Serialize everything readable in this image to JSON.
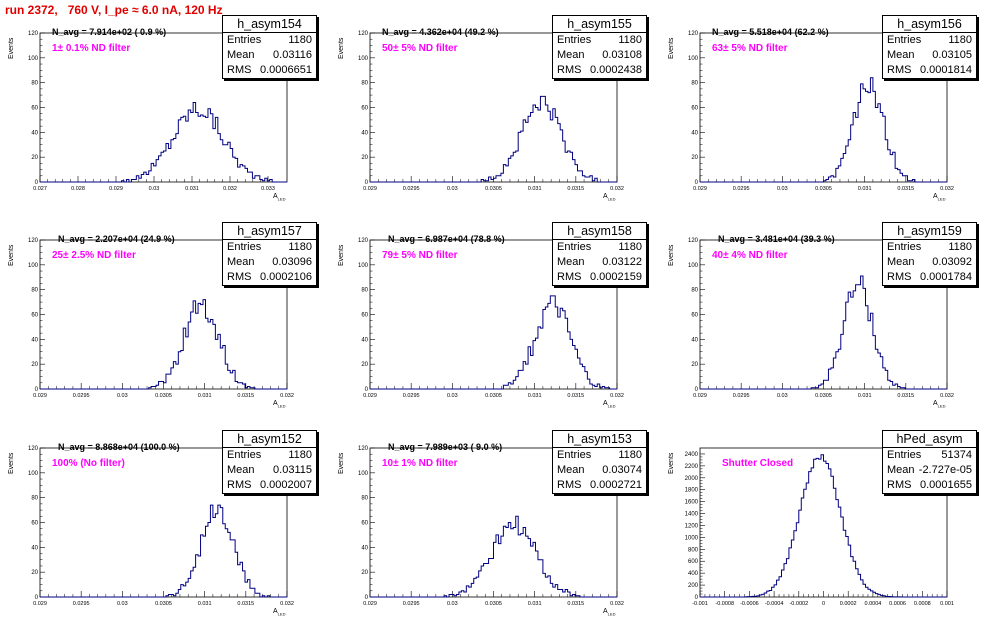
{
  "run_title": "run 2372,   760 V, I_pe ≈ 6.0 nA, 120 Hz",
  "colors": {
    "hist_line": "#000080",
    "filter_text": "#ff00ff",
    "title_text": "#e00000"
  },
  "chart_data": [
    {
      "type": "bar",
      "name": "h_asym154",
      "navg": "N_avg = 7.914e+02 ( 0.9 %)",
      "filter": "1± 0.1% ND filter",
      "stats": {
        "entries": "1180",
        "mean": "0.03116",
        "rms": "0.0006651"
      },
      "xlabel": "A",
      "xlabel_sub": "LED",
      "ylabel": "Events",
      "xlim": [
        0.027,
        0.0335
      ],
      "ylim": [
        0,
        120
      ],
      "xticks": [
        "0.027",
        "0.028",
        "0.029",
        "0.03",
        "0.031",
        "0.032",
        "0.033"
      ],
      "yticks": [
        "0",
        "20",
        "40",
        "60",
        "80",
        "100",
        "120"
      ],
      "mean": 0.03116,
      "rms": 0.0006651,
      "peak": 60
    },
    {
      "type": "bar",
      "name": "h_asym155",
      "navg": "N_avg = 4.362e+04 (49.2 %)",
      "filter": "50± 5% ND filter",
      "stats": {
        "entries": "1180",
        "mean": "0.03108",
        "rms": "0.0002438"
      },
      "xlabel": "A",
      "xlabel_sub": "LED",
      "ylabel": "Events",
      "xlim": [
        0.029,
        0.032
      ],
      "ylim": [
        0,
        120
      ],
      "xticks": [
        "0.029",
        "0.0295",
        "0.03",
        "0.0305",
        "0.031",
        "0.0315",
        "0.032"
      ],
      "yticks": [
        "0",
        "20",
        "40",
        "60",
        "80",
        "100",
        "120"
      ],
      "mean": 0.03108,
      "rms": 0.0002438,
      "peak": 63
    },
    {
      "type": "bar",
      "name": "h_asym156",
      "navg": "N_avg = 5.518e+04 (62.2 %)",
      "filter": "63± 5% ND filter",
      "stats": {
        "entries": "1180",
        "mean": "0.03105",
        "rms": "0.0001814"
      },
      "xlabel": "A",
      "xlabel_sub": "LED",
      "ylabel": "Events",
      "xlim": [
        0.029,
        0.032
      ],
      "ylim": [
        0,
        120
      ],
      "xticks": [
        "0.029",
        "0.0295",
        "0.03",
        "0.0305",
        "0.031",
        "0.0315",
        "0.032"
      ],
      "yticks": [
        "0",
        "20",
        "40",
        "60",
        "80",
        "100",
        "120"
      ],
      "mean": 0.03105,
      "rms": 0.0001814,
      "peak": 78
    },
    {
      "type": "bar",
      "name": "h_asym157",
      "navg": "N_avg = 2.207e+04 (24.9 %)",
      "filter": "25± 2.5% ND filter",
      "stats": {
        "entries": "1180",
        "mean": "0.03096",
        "rms": "0.0002106"
      },
      "xlabel": "A",
      "xlabel_sub": "LED",
      "ylabel": "Events",
      "xlim": [
        0.029,
        0.032
      ],
      "ylim": [
        0,
        120
      ],
      "xticks": [
        "0.029",
        "0.0295",
        "0.03",
        "0.0305",
        "0.031",
        "0.0315",
        "0.032"
      ],
      "yticks": [
        "0",
        "20",
        "40",
        "60",
        "80",
        "100",
        "120"
      ],
      "mean": 0.03096,
      "rms": 0.0002106,
      "peak": 68
    },
    {
      "type": "bar",
      "name": "h_asym158",
      "navg": "N_avg = 6.987e+04 (78.8 %)",
      "filter": "79± 5% ND filter",
      "stats": {
        "entries": "1180",
        "mean": "0.03122",
        "rms": "0.0002159"
      },
      "xlabel": "A",
      "xlabel_sub": "LED",
      "ylabel": "Events",
      "xlim": [
        0.029,
        0.032
      ],
      "ylim": [
        0,
        120
      ],
      "xticks": [
        "0.029",
        "0.0295",
        "0.03",
        "0.0305",
        "0.031",
        "0.0315",
        "0.032"
      ],
      "yticks": [
        "0",
        "20",
        "40",
        "60",
        "80",
        "100",
        "120"
      ],
      "mean": 0.03122,
      "rms": 0.0002159,
      "peak": 68
    },
    {
      "type": "bar",
      "name": "h_asym159",
      "navg": "N_avg = 3.481e+04 (39.3 %)",
      "filter": "40± 4% ND filter",
      "stats": {
        "entries": "1180",
        "mean": "0.03092",
        "rms": "0.0001784"
      },
      "xlabel": "A",
      "xlabel_sub": "LED",
      "ylabel": "Events",
      "xlim": [
        0.029,
        0.032
      ],
      "ylim": [
        0,
        120
      ],
      "xticks": [
        "0.029",
        "0.0295",
        "0.03",
        "0.0305",
        "0.031",
        "0.0315",
        "0.032"
      ],
      "yticks": [
        "0",
        "20",
        "40",
        "60",
        "80",
        "100",
        "120"
      ],
      "mean": 0.03092,
      "rms": 0.0001784,
      "peak": 84
    },
    {
      "type": "bar",
      "name": "h_asym152",
      "navg": "N_avg = 8.868e+04 (100.0 %)",
      "filter": "100% (No filter)",
      "stats": {
        "entries": "1180",
        "mean": "0.03115",
        "rms": "0.0002007"
      },
      "xlabel": "A",
      "xlabel_sub": "LED",
      "ylabel": "Events",
      "xlim": [
        0.029,
        0.032
      ],
      "ylim": [
        0,
        120
      ],
      "xticks": [
        "0.029",
        "0.0295",
        "0.03",
        "0.0305",
        "0.031",
        "0.0315",
        "0.032"
      ],
      "yticks": [
        "0",
        "20",
        "40",
        "60",
        "80",
        "100",
        "120"
      ],
      "mean": 0.03115,
      "rms": 0.0002007,
      "peak": 70
    },
    {
      "type": "bar",
      "name": "h_asym153",
      "navg": "N_avg = 7.989e+03 ( 9.0 %)",
      "filter": "10± 1% ND filter",
      "stats": {
        "entries": "1180",
        "mean": "0.03074",
        "rms": "0.0002721"
      },
      "xlabel": "A",
      "xlabel_sub": "LED",
      "ylabel": "Events",
      "xlim": [
        0.029,
        0.032
      ],
      "ylim": [
        0,
        120
      ],
      "xticks": [
        "0.029",
        "0.0295",
        "0.03",
        "0.0305",
        "0.031",
        "0.0315",
        "0.032"
      ],
      "yticks": [
        "0",
        "20",
        "40",
        "60",
        "80",
        "100",
        "120"
      ],
      "mean": 0.03074,
      "rms": 0.0002721,
      "peak": 58
    },
    {
      "type": "bar",
      "name": "hPed_asym",
      "navg": "",
      "filter": "Shutter Closed",
      "stats": {
        "entries": "51374",
        "mean": "-2.727e-05",
        "rms": "0.0001655"
      },
      "xlabel": "",
      "xlabel_sub": "",
      "ylabel": "Events",
      "xlim": [
        -0.001,
        0.001
      ],
      "ylim": [
        0,
        2500
      ],
      "xticks": [
        "-0.001",
        "-0.0008",
        "-0.0006",
        "-0.0004",
        "-0.0002",
        "0",
        "0.0002",
        "0.0004",
        "0.0006",
        "0.0008",
        "0.001"
      ],
      "yticks": [
        "0",
        "200",
        "400",
        "600",
        "800",
        "1000",
        "1200",
        "1400",
        "1600",
        "1800",
        "2000",
        "2200",
        "2400"
      ],
      "mean": -2.727e-05,
      "rms": 0.0001655,
      "peak": 2350
    }
  ]
}
